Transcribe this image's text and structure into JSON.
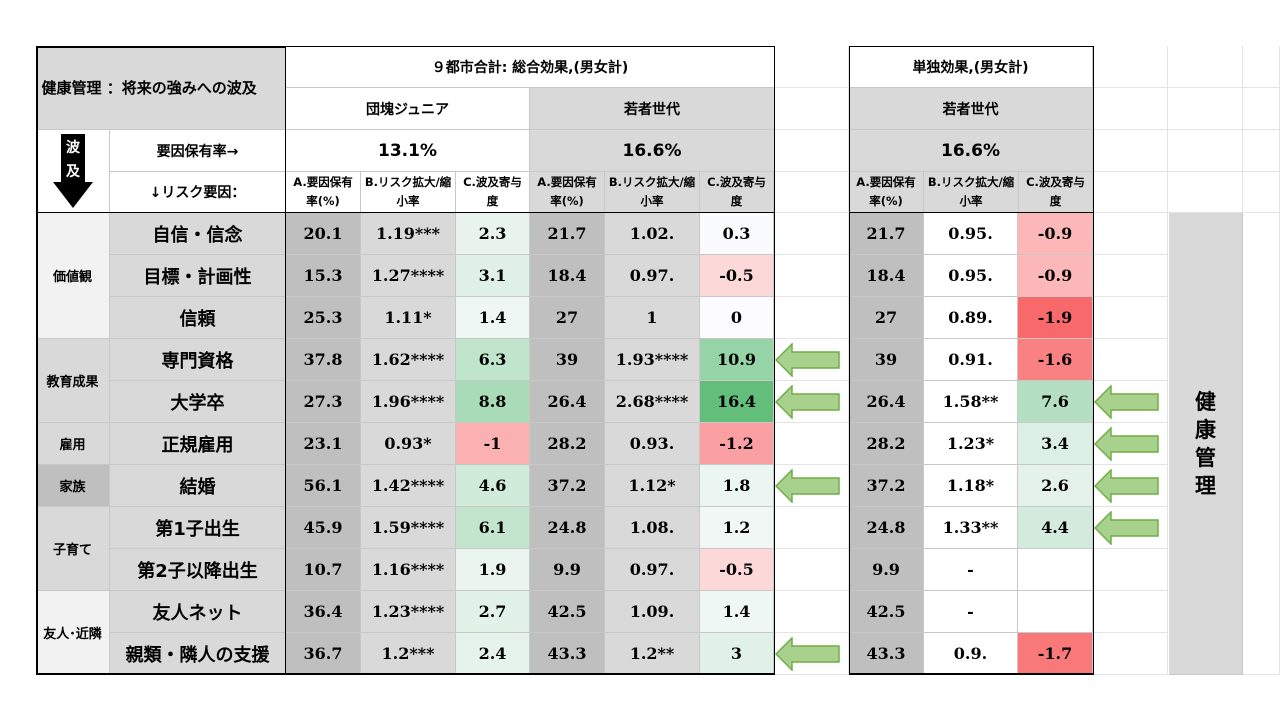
{
  "title": "健康管理 ：将来の強みへの波及",
  "section_total": "９都市合計: 総合効果,(男女計)",
  "section_solo": "単独効果,(男女計)",
  "group_dankai": "団塊ジュニア",
  "group_young": "若者世代",
  "group_young_solo": "若者世代",
  "rate_label": "要因保有率→",
  "risk_label": "↓リスク要因：",
  "wave_label_1": "波",
  "wave_label_2": "及",
  "rate_dankai": "13.1%",
  "rate_young": "16.6%",
  "rate_young_solo": "16.6%",
  "colA": "A.要因保有率(%)",
  "colB": "B.リスク拡大/縮小率",
  "colC": "C.波及寄与度",
  "side_label": "健康管理",
  "colors": {
    "header_gray": "#d9d9d9",
    "colA_gray": "#bfbfbf",
    "green_strong": "#63be7b",
    "red_strong": "#f8696b",
    "arrow_fill": "#a9d18e",
    "arrow_stroke": "#70ad47"
  },
  "groups": [
    {
      "label": "価値観",
      "color": "#f2f2f2"
    },
    {
      "label": "教育成果",
      "color": "#d9d9d9"
    },
    {
      "label": "雇用",
      "color": "#d9d9d9"
    },
    {
      "label": "家族",
      "color": "#bfbfbf"
    },
    {
      "label": "子育て",
      "color": "#d9d9d9"
    },
    {
      "label": "友人･近隣",
      "color": "#f2f2f2"
    }
  ],
  "rows": [
    {
      "factor": "自信・信念",
      "dA": "20.1",
      "dB": "1.19***",
      "dC": "2.3",
      "yA": "21.7",
      "yB": "1.02.",
      "yC": "0.3",
      "sA": "21.7",
      "sB": "0.95.",
      "sC": "-0.9"
    },
    {
      "factor": "目標・計画性",
      "dA": "15.3",
      "dB": "1.27****",
      "dC": "3.1",
      "yA": "18.4",
      "yB": "0.97.",
      "yC": "-0.5",
      "sA": "18.4",
      "sB": "0.95.",
      "sC": "-0.9"
    },
    {
      "factor": "信頼",
      "dA": "25.3",
      "dB": "1.11*",
      "dC": "1.4",
      "yA": "27",
      "yB": "1",
      "yC": "0",
      "sA": "27",
      "sB": "0.89.",
      "sC": "-1.9"
    },
    {
      "factor": "専門資格",
      "dA": "37.8",
      "dB": "1.62****",
      "dC": "6.3",
      "yA": "39",
      "yB": "1.93****",
      "yC": "10.9",
      "sA": "39",
      "sB": "0.91.",
      "sC": "-1.6"
    },
    {
      "factor": "大学卒",
      "dA": "27.3",
      "dB": "1.96****",
      "dC": "8.8",
      "yA": "26.4",
      "yB": "2.68****",
      "yC": "16.4",
      "sA": "26.4",
      "sB": "1.58**",
      "sC": "7.6"
    },
    {
      "factor": "正規雇用",
      "dA": "23.1",
      "dB": "0.93*",
      "dC": "-1",
      "yA": "28.2",
      "yB": "0.93.",
      "yC": "-1.2",
      "sA": "28.2",
      "sB": "1.23*",
      "sC": "3.4"
    },
    {
      "factor": "結婚",
      "dA": "56.1",
      "dB": "1.42****",
      "dC": "4.6",
      "yA": "37.2",
      "yB": "1.12*",
      "yC": "1.8",
      "sA": "37.2",
      "sB": "1.18*",
      "sC": "2.6"
    },
    {
      "factor": "第1子出生",
      "dA": "45.9",
      "dB": "1.59****",
      "dC": "6.1",
      "yA": "24.8",
      "yB": "1.08.",
      "yC": "1.2",
      "sA": "24.8",
      "sB": "1.33**",
      "sC": "4.4"
    },
    {
      "factor": "第2子以降出生",
      "dA": "10.7",
      "dB": "1.16****",
      "dC": "1.9",
      "yA": "9.9",
      "yB": "0.97.",
      "yC": "-0.5",
      "sA": "9.9",
      "sB": "-",
      "sC": ""
    },
    {
      "factor": "友人ネット",
      "dA": "36.4",
      "dB": "1.23****",
      "dC": "2.7",
      "yA": "42.5",
      "yB": "1.09.",
      "yC": "1.4",
      "sA": "42.5",
      "sB": "-",
      "sC": ""
    },
    {
      "factor": "親類・隣人の支援",
      "dA": "36.7",
      "dB": "1.2***",
      "dC": "2.4",
      "yA": "43.3",
      "yB": "1.2**",
      "yC": "3",
      "sA": "43.3",
      "sB": "0.9.",
      "sC": "-1.7"
    }
  ]
}
